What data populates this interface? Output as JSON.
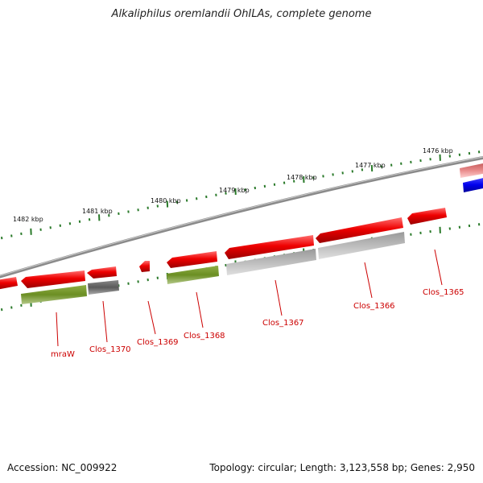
{
  "title": "Alkaliphilus oremlandii OhILAs, complete genome",
  "footer": {
    "accession": "Accession: NC_009922",
    "summary": "Topology: circular; Length: 3,123,558 bp; Genes: 2,950"
  },
  "scale_labels": [
    "1482 kbp",
    "1481 kbp",
    "1480 kbp",
    "1479 kbp",
    "1478 kbp",
    "1477 kbp",
    "1476 kbp"
  ],
  "gene_labels": [
    "mraW",
    "Clos_1370",
    "Clos_1369",
    "Clos_1368",
    "Clos_1367",
    "Clos_1366",
    "Clos_1365"
  ],
  "colors": {
    "cds": "#ee0000",
    "gene_green": "#6b8e23",
    "gene_gray_dark": "#666666",
    "gene_gray_light": "#bbbbbb",
    "gene_blue": "#0000ee",
    "backbone": "#888888",
    "ticks": "#2a7a2a",
    "label_red": "#cc0000"
  }
}
